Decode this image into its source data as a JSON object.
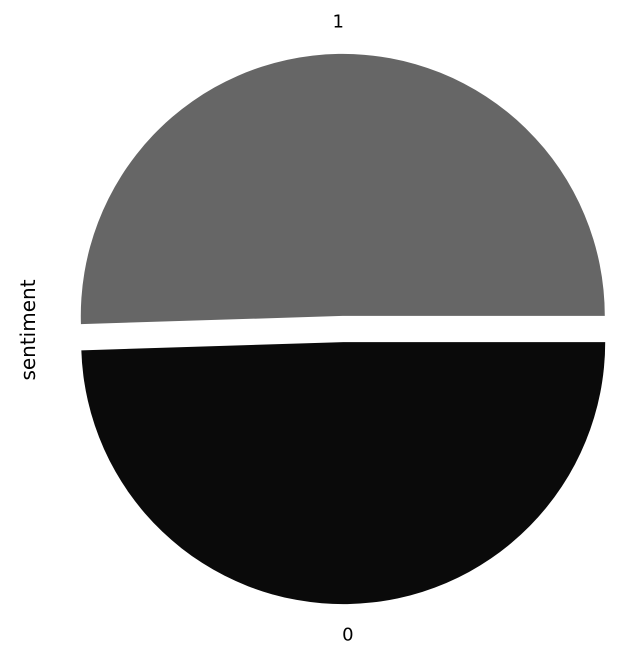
{
  "chart_data": {
    "type": "pie",
    "ylabel": "sentiment",
    "slices": [
      {
        "label": "1",
        "value": 0.505,
        "color": "#666666"
      },
      {
        "label": "0",
        "value": 0.495,
        "color": "#0a0a0a"
      }
    ],
    "explode": [
      0.05,
      0.05
    ],
    "legend": "none"
  }
}
